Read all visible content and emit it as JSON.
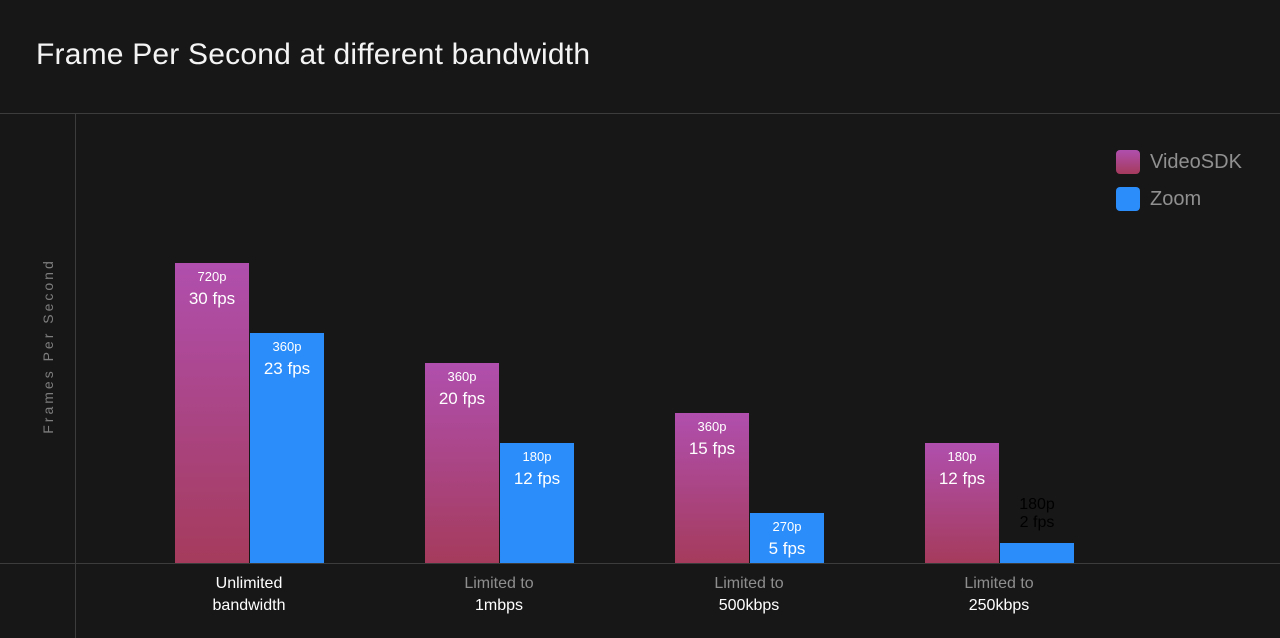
{
  "title": "Frame Per Second at different bandwidth",
  "colors": {
    "videosdk_top": "#b04fae",
    "videosdk_bottom": "#a53b5c",
    "zoom": "#2b8dfa",
    "background": "#171717"
  },
  "chart_data": {
    "type": "bar",
    "title": "Frame Per Second at different bandwidth",
    "ylabel": "Frames Per Second",
    "xlabel": "",
    "ylim": [
      0,
      30
    ],
    "grid": false,
    "legend_placement": "top-right",
    "categories": [
      {
        "line1": "Unlimited",
        "line2": "bandwidth",
        "highlight": true
      },
      {
        "line1": "Limited to",
        "line2": "1mbps",
        "highlight": false
      },
      {
        "line1": "Limited to",
        "line2": "500kbps",
        "highlight": false
      },
      {
        "line1": "Limited to",
        "line2": "250kbps",
        "highlight": false
      }
    ],
    "series": [
      {
        "name": "VideoSDK",
        "values": [
          30,
          20,
          15,
          12
        ],
        "resolutions": [
          "720p",
          "360p",
          "360p",
          "180p"
        ],
        "fps_labels": [
          "30 fps",
          "20 fps",
          "15 fps",
          "12 fps"
        ]
      },
      {
        "name": "Zoom",
        "values": [
          23,
          12,
          5,
          2
        ],
        "resolutions": [
          "360p",
          "180p",
          "270p",
          "180p"
        ],
        "fps_labels": [
          "23 fps",
          "12 fps",
          "5 fps",
          "2 fps"
        ]
      }
    ]
  }
}
